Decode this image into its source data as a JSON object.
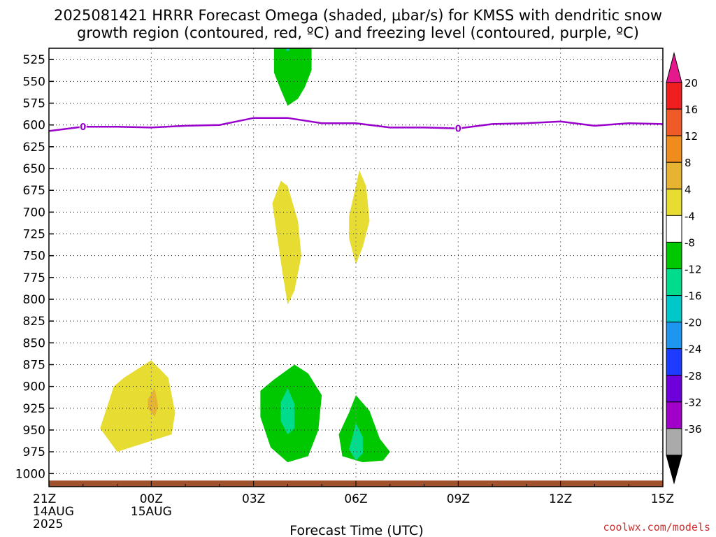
{
  "header": {
    "title_line1": "2025081421 HRRR Forecast Omega (shaded, μbar/s) for KMSS with dendritic snow",
    "title_line2": "growth region (contoured, red, ºC) and freezing level (contoured, purple, ºC)"
  },
  "footer": {
    "credit": "coolwx.com/models"
  },
  "chart_data": {
    "type": "heatmap",
    "xlabel": "Forecast Time (UTC)",
    "ylabel": "",
    "x_range_hours": [
      0,
      18
    ],
    "y_range_hpa": [
      1015,
      512
    ],
    "y_scale": "linear (inverted pressure)",
    "grid": true,
    "x_ticks": [
      {
        "hour": 0,
        "label": "21Z",
        "sub1": "14AUG",
        "sub2": "2025"
      },
      {
        "hour": 3,
        "label": "00Z",
        "sub1": "15AUG",
        "sub2": ""
      },
      {
        "hour": 6,
        "label": "03Z",
        "sub1": "",
        "sub2": ""
      },
      {
        "hour": 9,
        "label": "06Z",
        "sub1": "",
        "sub2": ""
      },
      {
        "hour": 12,
        "label": "09Z",
        "sub1": "",
        "sub2": ""
      },
      {
        "hour": 15,
        "label": "12Z",
        "sub1": "",
        "sub2": ""
      },
      {
        "hour": 18,
        "label": "15Z",
        "sub1": "",
        "sub2": ""
      }
    ],
    "y_ticks": [
      "525",
      "550",
      "575",
      "600",
      "625",
      "650",
      "675",
      "700",
      "725",
      "750",
      "775",
      "800",
      "825",
      "850",
      "875",
      "900",
      "925",
      "950",
      "975",
      "1000"
    ],
    "colorbar": {
      "levels": [
        {
          "value": "20",
          "color": "#f01e1e"
        },
        {
          "value": "16",
          "color": "#f05a28"
        },
        {
          "value": "12",
          "color": "#f08c1e"
        },
        {
          "value": "8",
          "color": "#e6b432"
        },
        {
          "value": "4",
          "color": "#e6dc32"
        },
        {
          "value": "-4",
          "color": "#ffffff"
        },
        {
          "value": "-8",
          "color": "#00c800"
        },
        {
          "value": "-12",
          "color": "#00dc8c"
        },
        {
          "value": "-16",
          "color": "#00c8c8"
        },
        {
          "value": "-20",
          "color": "#1e96f0"
        },
        {
          "value": "-24",
          "color": "#1e3cff"
        },
        {
          "value": "-28",
          "color": "#6e00dc"
        },
        {
          "value": "-32",
          "color": "#a000c8"
        },
        {
          "value": "-36",
          "color": "#aaaaaa"
        }
      ],
      "top_arrow_color": "#e6198c",
      "bottom_arrow_color": "#000000"
    },
    "freezing_level": {
      "color": "#9900cc",
      "hours": [
        0,
        1,
        2,
        3,
        4,
        5,
        6,
        7,
        8,
        9,
        10,
        11,
        12,
        13,
        14,
        15,
        16,
        17,
        18
      ],
      "pressure_hpa": [
        607,
        602,
        602,
        603,
        601,
        600,
        592,
        592,
        598,
        598,
        603,
        603,
        604,
        599,
        598,
        596,
        601,
        598,
        599
      ],
      "contour_labels": [
        {
          "hour": 1.0,
          "pressure_hpa": 602,
          "text": "0"
        },
        {
          "hour": 12.0,
          "pressure_hpa": 604,
          "text": "0"
        }
      ]
    },
    "terrain": {
      "color": "#a0522d",
      "top_hpa": 1008
    },
    "omega_regions": [
      {
        "name": "",
        "level": "-4",
        "color": "#00c800",
        "points": [
          [
            6.6,
            512
          ],
          [
            7.7,
            512
          ],
          [
            7.7,
            537
          ],
          [
            7.5,
            557
          ],
          [
            7.3,
            570
          ],
          [
            7.0,
            578
          ],
          [
            6.8,
            560
          ],
          [
            6.6,
            540
          ]
        ]
      },
      {
        "name": "",
        "level": "-12",
        "color": "#00c8c8",
        "points": [
          [
            6.95,
            512
          ],
          [
            7.05,
            512
          ],
          [
            7.05,
            515
          ],
          [
            6.95,
            515
          ]
        ]
      },
      {
        "name": "",
        "level": "4",
        "color": "#e6dc32",
        "points": [
          [
            6.8,
            664
          ],
          [
            7.0,
            670
          ],
          [
            7.3,
            710
          ],
          [
            7.4,
            750
          ],
          [
            7.2,
            790
          ],
          [
            7.0,
            806
          ],
          [
            6.85,
            770
          ],
          [
            6.7,
            730
          ],
          [
            6.55,
            690
          ]
        ]
      },
      {
        "name": "",
        "level": "4",
        "color": "#e6dc32",
        "points": [
          [
            8.8,
            705
          ],
          [
            9.1,
            652
          ],
          [
            9.3,
            670
          ],
          [
            9.4,
            710
          ],
          [
            9.2,
            740
          ],
          [
            9.0,
            760
          ],
          [
            8.8,
            730
          ]
        ]
      },
      {
        "name": "",
        "level": "4",
        "color": "#e6dc32",
        "points": [
          [
            2.2,
            890
          ],
          [
            3.0,
            870
          ],
          [
            3.5,
            890
          ],
          [
            3.7,
            930
          ],
          [
            3.6,
            955
          ],
          [
            3.2,
            960
          ],
          [
            2.0,
            975
          ],
          [
            1.5,
            948
          ],
          [
            1.9,
            900
          ]
        ]
      },
      {
        "name": "",
        "level": "8",
        "color": "#e6b432",
        "points": [
          [
            2.9,
            915
          ],
          [
            3.1,
            902
          ],
          [
            3.2,
            922
          ],
          [
            3.1,
            935
          ],
          [
            2.9,
            925
          ]
        ]
      },
      {
        "name": "",
        "level": "-4",
        "color": "#00c800",
        "points": [
          [
            6.6,
            892
          ],
          [
            7.2,
            875
          ],
          [
            7.6,
            885
          ],
          [
            8.0,
            910
          ],
          [
            7.9,
            950
          ],
          [
            7.6,
            980
          ],
          [
            7.0,
            987
          ],
          [
            6.5,
            970
          ],
          [
            6.2,
            935
          ],
          [
            6.2,
            905
          ]
        ]
      },
      {
        "name": "",
        "level": "-8",
        "color": "#00dc8c",
        "points": [
          [
            6.8,
            918
          ],
          [
            7.0,
            902
          ],
          [
            7.2,
            920
          ],
          [
            7.2,
            948
          ],
          [
            7.0,
            955
          ],
          [
            6.8,
            940
          ]
        ]
      },
      {
        "name": "",
        "level": "-4",
        "color": "#00c800",
        "points": [
          [
            8.8,
            930
          ],
          [
            9.0,
            910
          ],
          [
            9.4,
            928
          ],
          [
            9.7,
            960
          ],
          [
            10.0,
            975
          ],
          [
            9.8,
            985
          ],
          [
            9.2,
            987
          ],
          [
            8.6,
            980
          ],
          [
            8.5,
            955
          ]
        ]
      },
      {
        "name": "",
        "level": "-8",
        "color": "#00dc8c",
        "points": [
          [
            8.9,
            958
          ],
          [
            9.0,
            942
          ],
          [
            9.2,
            958
          ],
          [
            9.2,
            977
          ],
          [
            9.0,
            985
          ],
          [
            8.8,
            972
          ]
        ]
      }
    ]
  }
}
